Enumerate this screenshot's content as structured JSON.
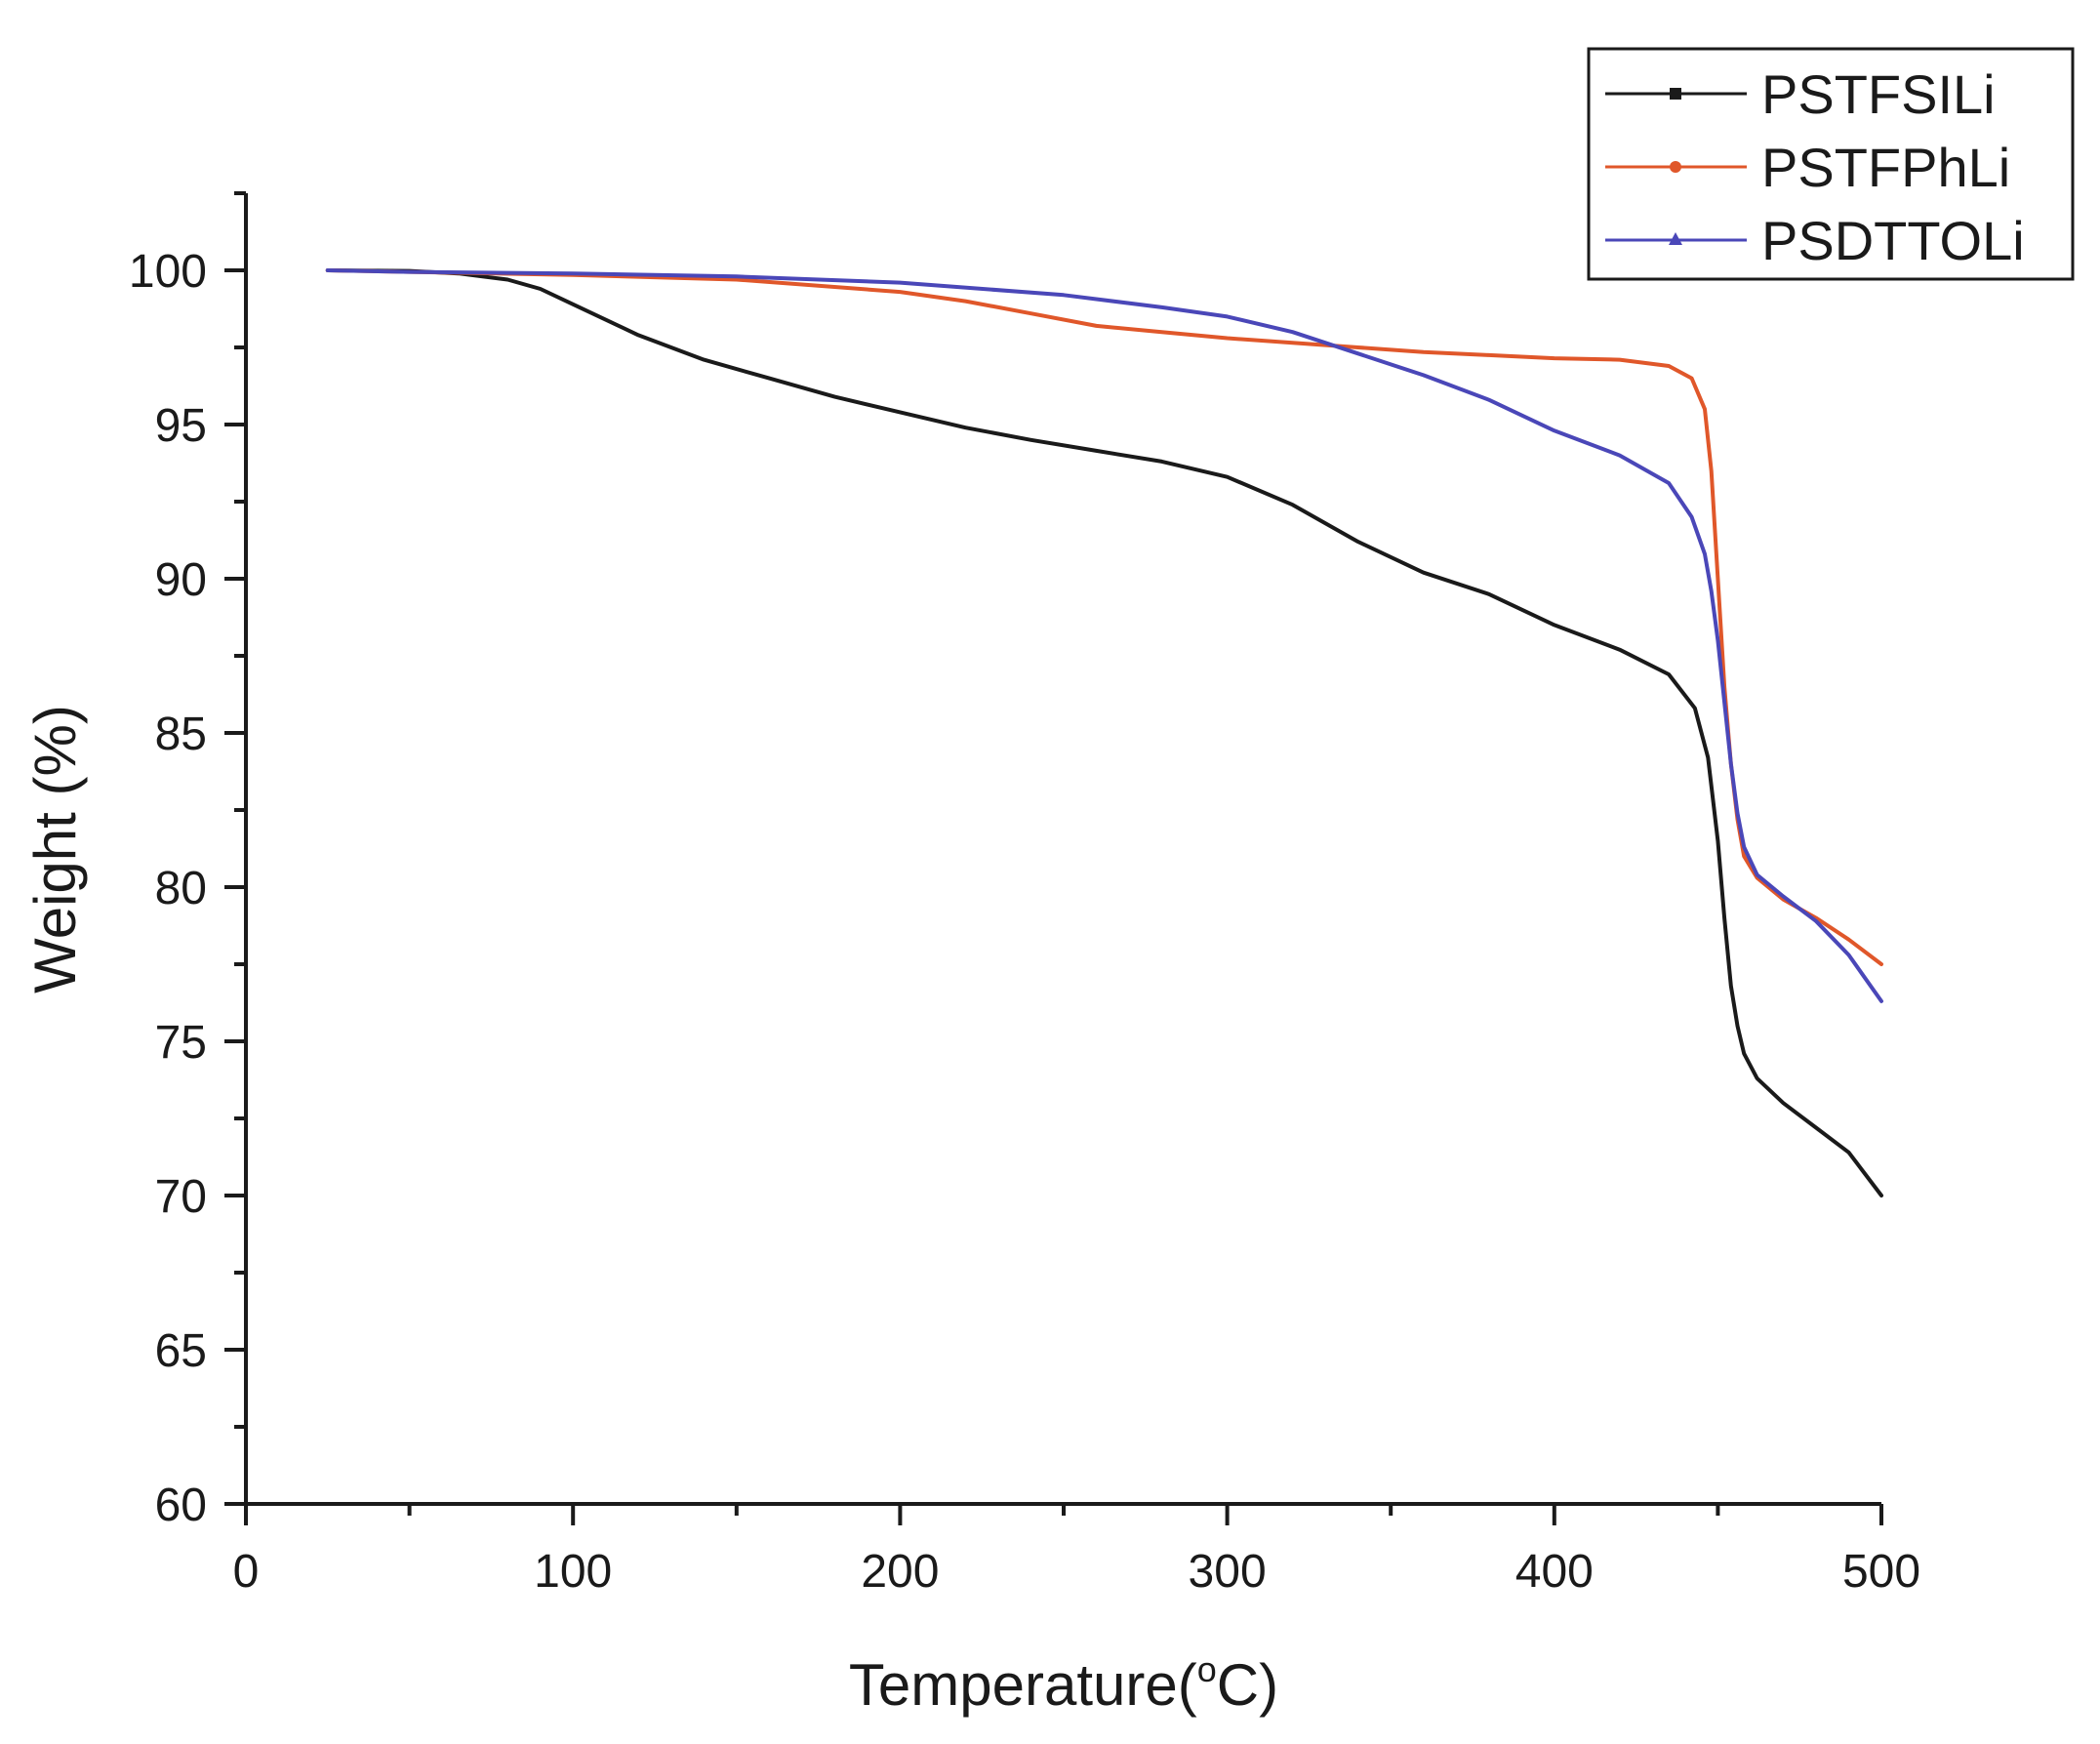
{
  "chart_data": {
    "type": "line",
    "title": "",
    "xlabel": "Temperature",
    "xlabel_unit_pre": "(",
    "xlabel_unit_deg": "o",
    "xlabel_unit_post": "C)",
    "ylabel": "Weight (%)",
    "xlim": [
      0,
      500
    ],
    "ylim": [
      60,
      102.5
    ],
    "x_ticks": [
      0,
      100,
      200,
      300,
      400,
      500
    ],
    "x_tick_labels": [
      "0",
      "100",
      "200",
      "300",
      "400",
      "500"
    ],
    "y_ticks": [
      60,
      65,
      70,
      75,
      80,
      85,
      90,
      95,
      100
    ],
    "y_tick_labels": [
      "60",
      "65",
      "70",
      "75",
      "80",
      "85",
      "90",
      "95",
      "100"
    ],
    "grid": false,
    "legend_position": "top-right",
    "series": [
      {
        "name": "PSTFSILi",
        "color": "#1a1a1a",
        "marker": "square",
        "x": [
          25,
          50,
          65,
          80,
          90,
          100,
          120,
          140,
          160,
          180,
          200,
          220,
          240,
          260,
          280,
          300,
          320,
          340,
          360,
          380,
          400,
          420,
          435,
          443,
          447,
          450,
          452,
          454,
          456,
          458,
          462,
          470,
          480,
          490,
          500
        ],
        "y": [
          100,
          99.98,
          99.9,
          99.7,
          99.4,
          98.9,
          97.9,
          97.1,
          96.5,
          95.9,
          95.4,
          94.9,
          94.5,
          94.15,
          93.8,
          93.3,
          92.4,
          91.2,
          90.2,
          89.5,
          88.5,
          87.7,
          86.9,
          85.8,
          84.2,
          81.5,
          79.0,
          76.8,
          75.5,
          74.6,
          73.8,
          73.0,
          72.2,
          71.4,
          70.0
        ]
      },
      {
        "name": "PSTFPhLi",
        "color": "#e0572a",
        "marker": "circle",
        "x": [
          25,
          50,
          100,
          150,
          200,
          220,
          240,
          260,
          280,
          300,
          320,
          340,
          360,
          380,
          400,
          420,
          435,
          442,
          446,
          448,
          450,
          452,
          454,
          456,
          458,
          462,
          470,
          480,
          490,
          500
        ],
        "y": [
          100,
          99.95,
          99.85,
          99.7,
          99.3,
          99.0,
          98.6,
          98.2,
          98.0,
          97.8,
          97.65,
          97.5,
          97.35,
          97.25,
          97.15,
          97.1,
          96.9,
          96.5,
          95.5,
          93.5,
          90.0,
          86.5,
          84.0,
          82.2,
          81.0,
          80.3,
          79.6,
          79.0,
          78.3,
          77.5
        ]
      },
      {
        "name": "PSDTTOLi",
        "color": "#4a47b8",
        "marker": "triangle",
        "x": [
          25,
          50,
          100,
          150,
          200,
          250,
          280,
          300,
          320,
          340,
          360,
          380,
          400,
          420,
          435,
          442,
          446,
          448,
          450,
          452,
          454,
          456,
          458,
          462,
          470,
          480,
          490,
          500
        ],
        "y": [
          100,
          99.95,
          99.9,
          99.8,
          99.6,
          99.2,
          98.8,
          98.5,
          98.0,
          97.3,
          96.6,
          95.8,
          94.8,
          94.0,
          93.1,
          92.0,
          90.8,
          89.6,
          88.0,
          86.0,
          84.0,
          82.4,
          81.3,
          80.4,
          79.7,
          78.9,
          77.8,
          76.3
        ]
      }
    ]
  }
}
